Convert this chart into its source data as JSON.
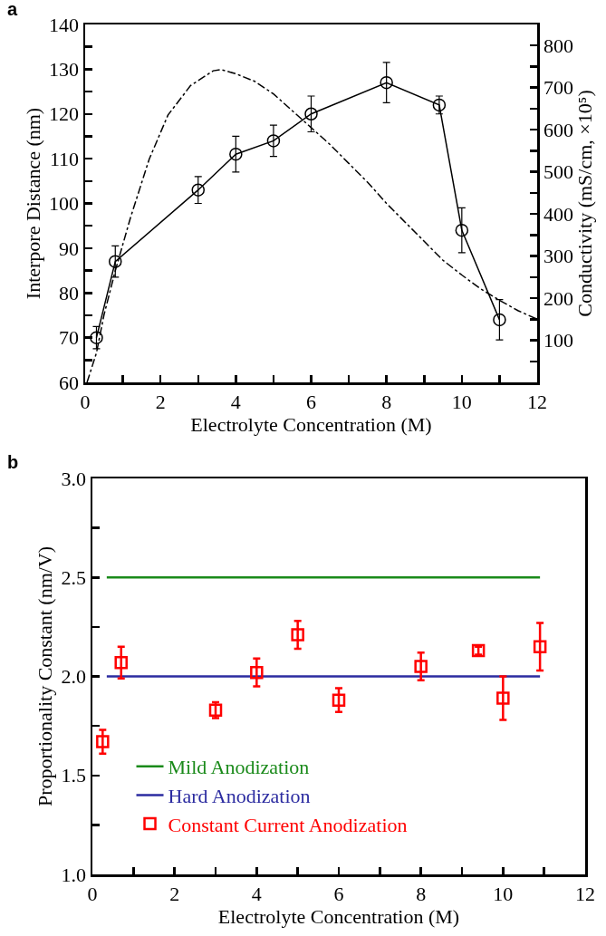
{
  "chart_data": [
    {
      "type": "line",
      "title": "a",
      "xlabel": "Electrolyte Concentration (M)",
      "ylabel": "Interpore Distance (nm)",
      "y2label": "Conductivity (mS/cm, ×10⁵)",
      "xlim": [
        0,
        12
      ],
      "xticks": [
        0,
        {
          "value": 1,
          "label": null
        },
        2,
        {
          "value": 3,
          "label": null
        },
        4,
        {
          "value": 5,
          "label": null
        },
        6,
        {
          "value": 7,
          "label": null
        },
        8,
        {
          "value": 9,
          "label": null
        },
        10,
        {
          "value": 11,
          "label": null
        },
        12
      ],
      "ylim": [
        60,
        140
      ],
      "yticks": [
        60,
        {
          "value": 65,
          "label": null
        },
        70,
        {
          "value": 75,
          "label": null
        },
        80,
        {
          "value": 85,
          "label": null
        },
        90,
        {
          "value": 95,
          "label": null
        },
        100,
        {
          "value": 105,
          "label": null
        },
        110,
        {
          "value": 115,
          "label": null
        },
        120,
        {
          "value": 125,
          "label": null
        },
        130,
        {
          "value": 135,
          "label": null
        },
        140
      ],
      "y2lim": [
        0,
        850
      ],
      "y2ticks": [
        {
          "value": 50,
          "label": null
        },
        100,
        {
          "value": 150,
          "label": null
        },
        200,
        {
          "value": 250,
          "label": null
        },
        300,
        {
          "value": 350,
          "label": null
        },
        400,
        {
          "value": 450,
          "label": null
        },
        500,
        {
          "value": 550,
          "label": null
        },
        600,
        {
          "value": 650,
          "label": null
        },
        700,
        {
          "value": 750,
          "label": null
        },
        800
      ],
      "grid": false,
      "legend": false,
      "series": [
        {
          "color": "#000000",
          "marker": "circle",
          "line_style": "solid",
          "x": [
            0.3,
            0.8,
            3,
            4,
            5,
            6,
            8,
            9.4,
            10,
            11
          ],
          "values": [
            70,
            87,
            103,
            111,
            114,
            120,
            127,
            122,
            94,
            74
          ],
          "errors": [
            2.5,
            3.5,
            3,
            4,
            3.5,
            4,
            4.5,
            2,
            5,
            4.5
          ]
        },
        {
          "axis": "y2",
          "color": "#000000",
          "marker": "none",
          "line_style": "dashdot",
          "x": [
            0.05,
            0.3,
            0.5,
            0.8,
            1.2,
            1.7,
            2.2,
            2.8,
            3.4,
            3.6,
            4.0,
            4.5,
            5.0,
            5.5,
            6.0,
            6.5,
            7.0,
            7.5,
            8.0,
            8.5,
            9.0,
            9.5,
            10.0,
            10.5,
            11.0,
            11.5,
            12.0
          ],
          "values": [
            0,
            70,
            160,
            265,
            390,
            530,
            635,
            705,
            740,
            743,
            733,
            715,
            685,
            645,
            605,
            565,
            520,
            475,
            425,
            380,
            335,
            290,
            255,
            222,
            195,
            170,
            150
          ]
        }
      ]
    },
    {
      "type": "scatter",
      "title": "b",
      "xlabel": "Electrolyte Concentration (M)",
      "ylabel": "Proportionality Constant (nm/V)",
      "xlim": [
        0,
        12
      ],
      "xticks": [
        0,
        {
          "value": 1,
          "label": null
        },
        2,
        {
          "value": 3,
          "label": null
        },
        4,
        {
          "value": 5,
          "label": null
        },
        6,
        {
          "value": 7,
          "label": null
        },
        8,
        {
          "value": 9,
          "label": null
        },
        10,
        {
          "value": 11,
          "label": null
        },
        12
      ],
      "ylim": [
        1.0,
        3.0
      ],
      "yticks": [
        {
          "value": 1.0,
          "label": "1.0"
        },
        {
          "value": 1.25,
          "label": null
        },
        1.5,
        {
          "value": 1.75,
          "label": null
        },
        {
          "value": 2.0,
          "label": "2.0"
        },
        {
          "value": 2.25,
          "label": null
        },
        2.5,
        {
          "value": 2.75,
          "label": null
        },
        {
          "value": 3.0,
          "label": "3.0"
        }
      ],
      "grid": false,
      "legend": "bottom left",
      "series": [
        {
          "type": "line",
          "name": "Mild Anodization",
          "color": "#1a8a1a",
          "marker": "none",
          "line_style": "solid",
          "x": [
            0.35,
            10.9
          ],
          "values": [
            2.5,
            2.5
          ]
        },
        {
          "type": "line",
          "name": "Hard Anodization",
          "color": "#2b2ba0",
          "marker": "none",
          "line_style": "solid",
          "x": [
            0.35,
            10.9
          ],
          "values": [
            2.0,
            2.0
          ]
        },
        {
          "name": "Constant Current Anodization",
          "color": "#ff0000",
          "marker": "square",
          "x": [
            0.25,
            0.7,
            3,
            4,
            5,
            6,
            8,
            9.4,
            10,
            10.9
          ],
          "values": [
            1.67,
            2.07,
            1.83,
            2.02,
            2.21,
            1.88,
            2.05,
            2.13,
            1.89,
            2.15
          ],
          "errors": [
            0.06,
            0.08,
            0.04,
            0.07,
            0.07,
            0.06,
            0.07,
            0.02,
            0.11,
            0.12
          ]
        }
      ]
    }
  ]
}
